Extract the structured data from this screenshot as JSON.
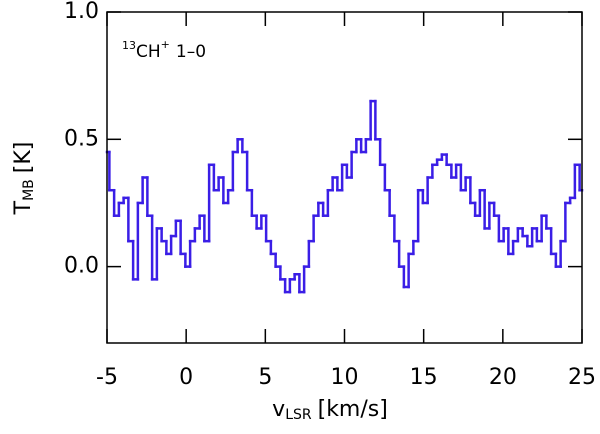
{
  "chart_data": {
    "type": "step",
    "annotation": {
      "prefix": "13",
      "species": "CH",
      "charge": "+",
      "transition": "1–0"
    },
    "xlabel": {
      "symbol": "v",
      "subscript": "LSR",
      "unit": "[km/s]"
    },
    "ylabel": {
      "symbol": "T",
      "subscript": "MB",
      "unit": "[K]"
    },
    "xlim": [
      -5,
      25
    ],
    "xticks": [
      -5,
      0,
      5,
      10,
      15,
      20,
      25
    ],
    "ylim": [
      -0.3,
      1.0
    ],
    "yticks": [
      {
        "value": 0,
        "label": "0.0"
      },
      {
        "value": 0.5,
        "label": "0.5"
      },
      {
        "value": 1.0,
        "label": "1.0"
      }
    ],
    "series": [
      {
        "color": "#3a1ee6",
        "x": [
          -5.0,
          -4.7,
          -4.4,
          -4.1,
          -3.8,
          -3.5,
          -3.2,
          -2.9,
          -2.6,
          -2.3,
          -2.0,
          -1.7,
          -1.4,
          -1.1,
          -0.8,
          -0.5,
          -0.2,
          0.1,
          0.4,
          0.7,
          1.0,
          1.3,
          1.6,
          1.9,
          2.2,
          2.5,
          2.8,
          3.1,
          3.4,
          3.7,
          4.0,
          4.3,
          4.6,
          4.9,
          5.2,
          5.5,
          5.8,
          6.1,
          6.4,
          6.7,
          7.0,
          7.3,
          7.6,
          7.9,
          8.2,
          8.5,
          8.8,
          9.1,
          9.4,
          9.7,
          10.0,
          10.3,
          10.6,
          10.9,
          11.2,
          11.5,
          11.8,
          12.1,
          12.4,
          12.7,
          13.0,
          13.3,
          13.6,
          13.9,
          14.2,
          14.5,
          14.8,
          15.1,
          15.4,
          15.7,
          16.0,
          16.3,
          16.6,
          16.9,
          17.2,
          17.5,
          17.8,
          18.1,
          18.4,
          18.7,
          19.0,
          19.3,
          19.6,
          19.9,
          20.2,
          20.5,
          20.8,
          21.1,
          21.4,
          21.7,
          22.0,
          22.3,
          22.6,
          22.9,
          23.2,
          23.5,
          23.8,
          24.1,
          24.4,
          24.7,
          25.0
        ],
        "values": [
          0.45,
          0.3,
          0.2,
          0.25,
          0.27,
          0.1,
          -0.05,
          0.25,
          0.35,
          0.2,
          -0.05,
          0.15,
          0.1,
          0.05,
          0.12,
          0.18,
          0.05,
          0.0,
          0.1,
          0.15,
          0.2,
          0.1,
          0.4,
          0.3,
          0.35,
          0.25,
          0.3,
          0.45,
          0.5,
          0.45,
          0.3,
          0.2,
          0.15,
          0.2,
          0.1,
          0.05,
          0.0,
          -0.05,
          -0.1,
          -0.05,
          -0.03,
          -0.1,
          0.0,
          0.1,
          0.2,
          0.25,
          0.2,
          0.3,
          0.35,
          0.3,
          0.4,
          0.35,
          0.45,
          0.5,
          0.45,
          0.5,
          0.65,
          0.5,
          0.4,
          0.3,
          0.2,
          0.1,
          0.0,
          -0.08,
          0.05,
          0.1,
          0.3,
          0.25,
          0.35,
          0.4,
          0.42,
          0.44,
          0.4,
          0.35,
          0.4,
          0.3,
          0.35,
          0.25,
          0.2,
          0.3,
          0.15,
          0.25,
          0.2,
          0.1,
          0.15,
          0.05,
          0.1,
          0.15,
          0.12,
          0.08,
          0.15,
          0.1,
          0.2,
          0.15,
          0.05,
          0.0,
          0.1,
          0.25,
          0.27,
          0.4,
          0.3
        ]
      }
    ]
  }
}
